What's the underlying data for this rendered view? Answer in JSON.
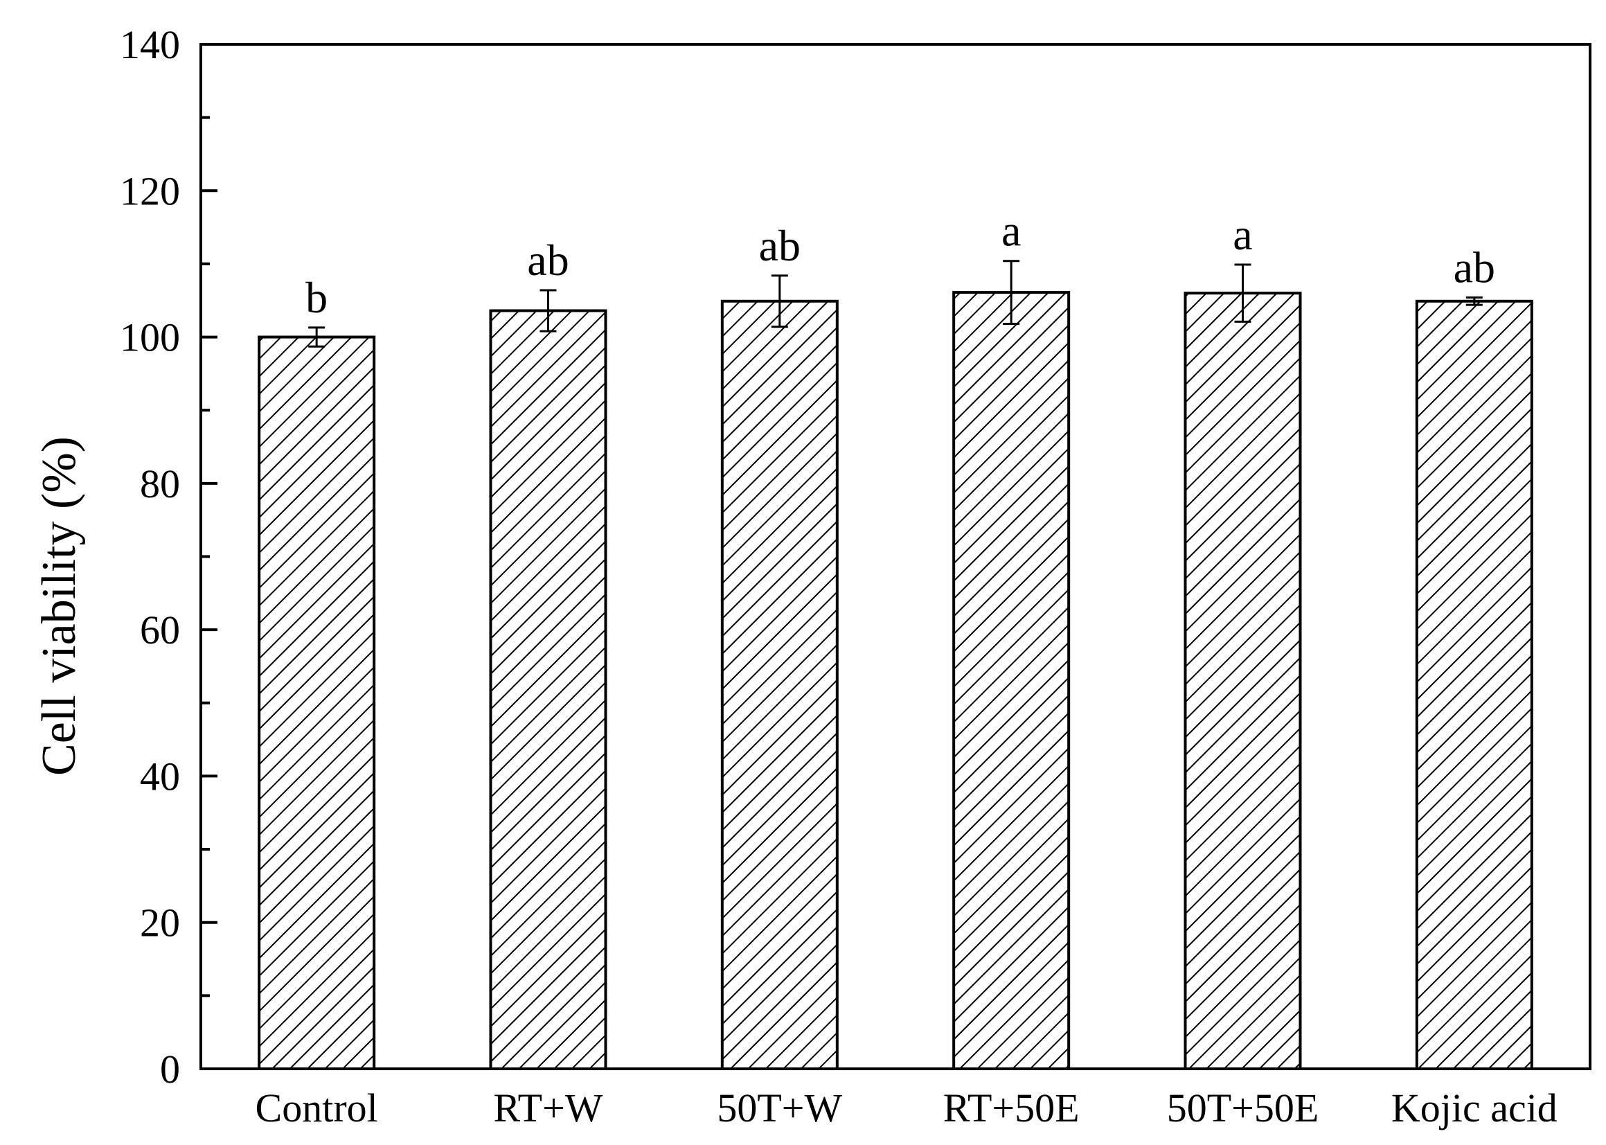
{
  "chart_data": {
    "type": "bar",
    "title": "",
    "xlabel": "",
    "ylabel": "Cell viability (%)",
    "ylim": [
      0,
      140
    ],
    "yticks": [
      0,
      20,
      40,
      60,
      80,
      100,
      120,
      140
    ],
    "y_minor_step": 10,
    "grid": false,
    "legend": "none",
    "bar_fill": "diagonal hatch",
    "bar_color": "#000000",
    "categories": [
      "Control",
      "RT+W",
      "50T+W",
      "RT+50E",
      "50T+50E",
      "Kojic acid"
    ],
    "values": [
      100.0,
      103.6,
      104.9,
      106.1,
      106.0,
      104.9
    ],
    "errors": [
      1.3,
      2.8,
      3.5,
      4.3,
      3.9,
      0.5
    ],
    "significance_labels": [
      "b",
      "ab",
      "ab",
      "a",
      "a",
      "ab"
    ]
  }
}
